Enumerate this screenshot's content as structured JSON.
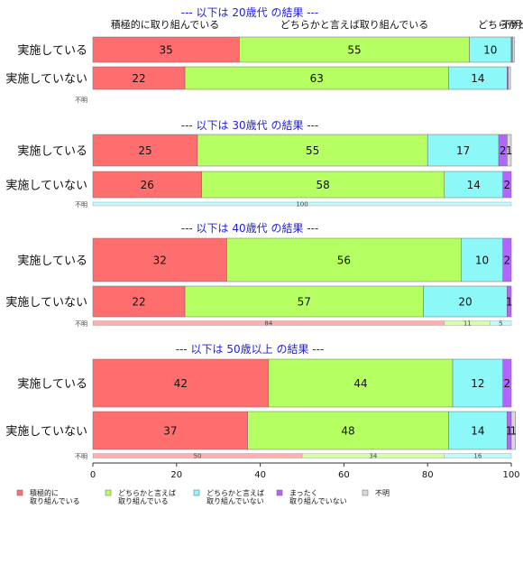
{
  "chart_data": {
    "type": "bar",
    "orientation": "horizontal",
    "stacked": true,
    "xlim": [
      0,
      100
    ],
    "x_ticks": [
      "0",
      "20",
      "40",
      "60",
      "80",
      "100"
    ],
    "categories": [
      "積極的に取り組んでいる",
      "どちらかと言えば取り組んでいる",
      "どちらかと言えば取り組んでいない",
      "まったく取り組んでいない",
      "不明"
    ],
    "colors": [
      "#ff6e6e",
      "#b6ff62",
      "#8cf8f8",
      "#b565ff",
      "#d9d9d9"
    ],
    "header_labels": [
      "積極的に取り組んでいる",
      "どちらかと言えば取り組んでいる",
      "どちらかと言",
      "不明"
    ],
    "legend": [
      {
        "line1": "積極的に",
        "line2": "取り組んでいる"
      },
      {
        "line1": "どちらかと言えば",
        "line2": "取り組んでいる"
      },
      {
        "line1": "どちらかと言えば",
        "line2": "取り組んでいない"
      },
      {
        "line1": "まったく",
        "line2": "取り組んでいない"
      },
      {
        "line1": "不明",
        "line2": ""
      }
    ],
    "missing_label": "不明",
    "panels": [
      {
        "title": "--- 以下は 20歳代 の結果 ---",
        "rows": [
          {
            "label": "実施している",
            "values": [
              35,
              55,
              10,
              0.3,
              0.4
            ],
            "labels": [
              "35",
              "55",
              "10",
              "",
              ""
            ]
          },
          {
            "label": "実施していない",
            "values": [
              22,
              63,
              14,
              0.3,
              0.5
            ],
            "labels": [
              "22",
              "63",
              "14",
              "",
              ""
            ]
          }
        ],
        "missing": {
          "values": [],
          "labels": []
        }
      },
      {
        "title": "--- 以下は 30歳代 の結果 ---",
        "rows": [
          {
            "label": "実施している",
            "values": [
              25,
              55,
              17,
              2,
              1
            ],
            "labels": [
              "25",
              "55",
              "17",
              "2",
              "1"
            ]
          },
          {
            "label": "実施していない",
            "values": [
              26,
              58,
              14,
              2,
              0
            ],
            "labels": [
              "26",
              "58",
              "14",
              "2",
              ""
            ]
          }
        ],
        "missing": {
          "values": [
            0,
            0,
            100,
            0,
            0
          ],
          "labels": [
            "",
            "",
            "100",
            "",
            ""
          ]
        }
      },
      {
        "title": "--- 以下は 40歳代 の結果 ---",
        "rows": [
          {
            "label": "実施している",
            "values": [
              32,
              56,
              10,
              2,
              0
            ],
            "labels": [
              "32",
              "56",
              "10",
              "2",
              ""
            ]
          },
          {
            "label": "実施していない",
            "values": [
              22,
              57,
              20,
              1,
              0
            ],
            "labels": [
              "22",
              "57",
              "20",
              "1",
              ""
            ]
          }
        ],
        "missing": {
          "values": [
            84,
            11,
            5,
            0,
            0
          ],
          "labels": [
            "84",
            "11",
            "5",
            "",
            ""
          ]
        }
      },
      {
        "title": "--- 以下は 50歳以上 の結果 ---",
        "rows": [
          {
            "label": "実施している",
            "values": [
              42,
              44,
              12,
              2,
              0
            ],
            "labels": [
              "42",
              "44",
              "12",
              "2",
              ""
            ]
          },
          {
            "label": "実施していない",
            "values": [
              37,
              48,
              14,
              1,
              1
            ],
            "labels": [
              "37",
              "48",
              "14",
              "1",
              "1"
            ]
          }
        ],
        "missing": {
          "values": [
            50,
            34,
            16,
            0,
            0
          ],
          "labels": [
            "50",
            "34",
            "16",
            "",
            ""
          ]
        }
      }
    ]
  }
}
